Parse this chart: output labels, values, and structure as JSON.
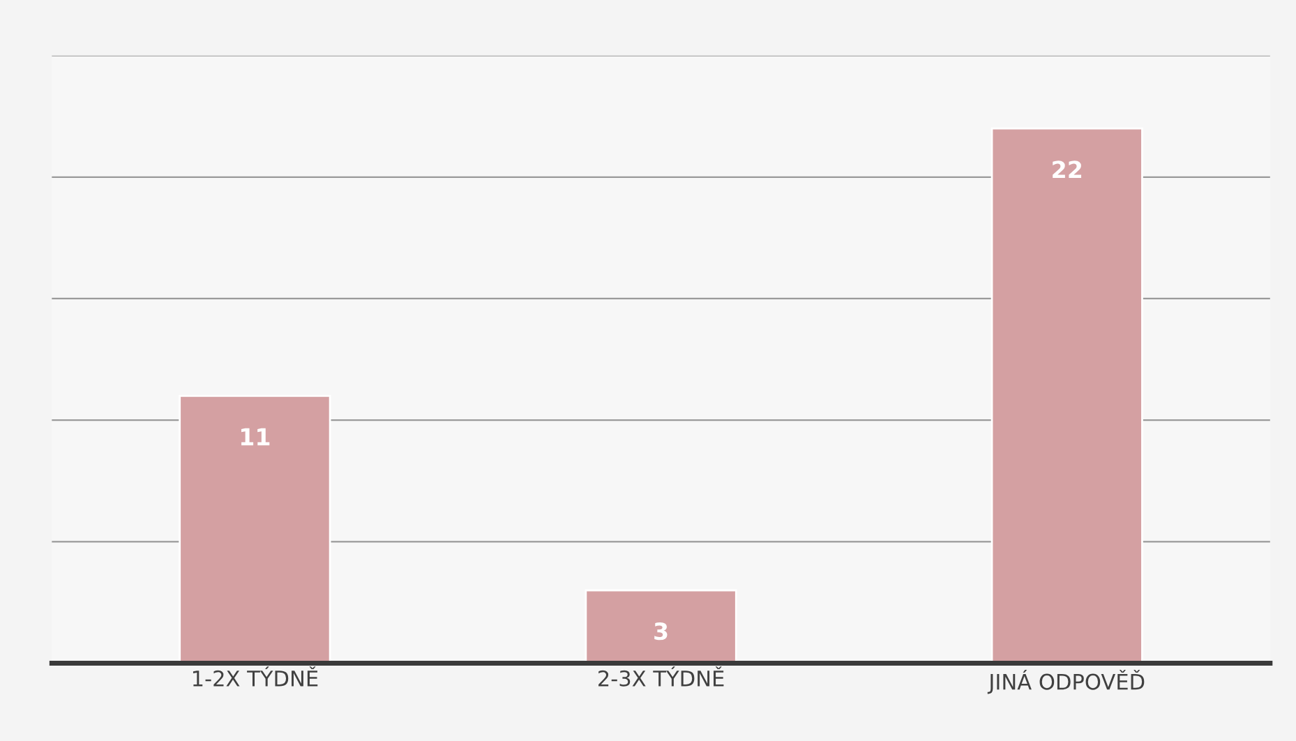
{
  "chart_data": {
    "type": "bar",
    "categories": [
      "1-2X TÝDNĚ",
      "2-3X TÝDNĚ",
      "JINÁ ODPOVĚĎ"
    ],
    "values": [
      11,
      3,
      22
    ],
    "color": "#d4a0a2",
    "ylim": [
      0,
      25
    ],
    "yticks": [
      {
        "value": 0,
        "label": null
      },
      {
        "value": 5,
        "label": null
      },
      {
        "value": 10,
        "label": null
      },
      {
        "value": 15,
        "label": null
      },
      {
        "value": 20,
        "label": null
      },
      {
        "value": 25,
        "label": null
      }
    ],
    "tick_labels": "x",
    "grid": "y",
    "data_labels": true
  }
}
